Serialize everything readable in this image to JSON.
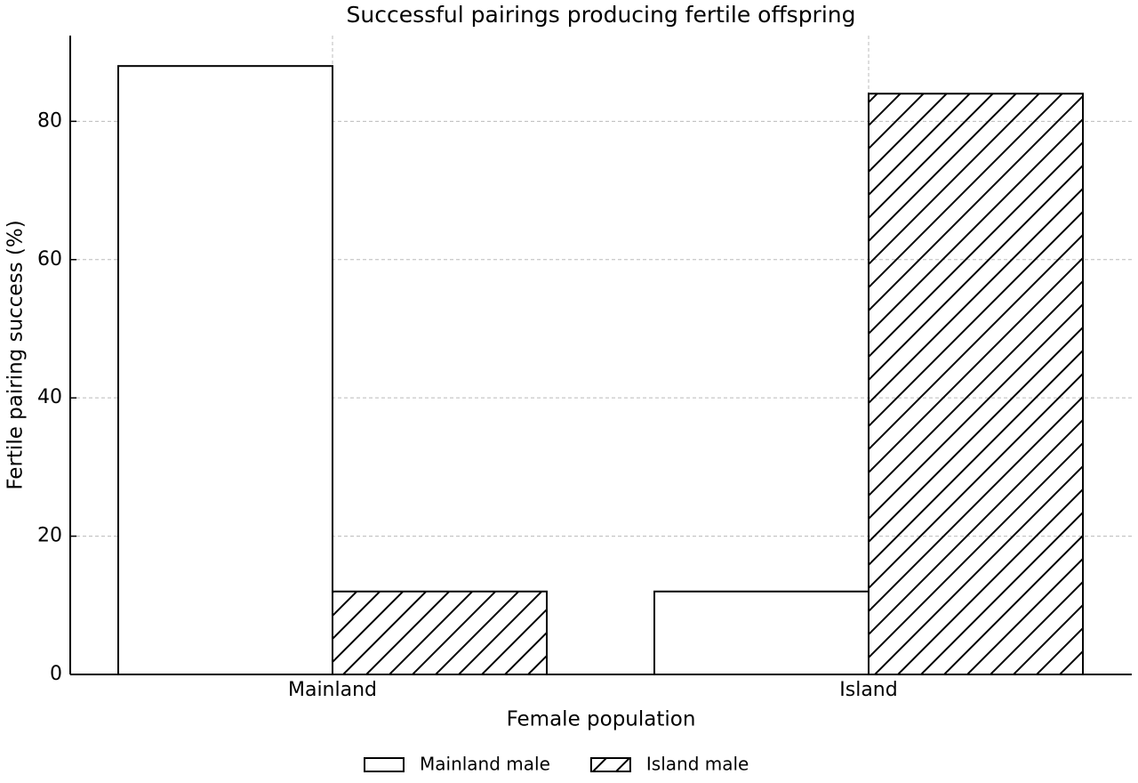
{
  "chart_data": {
    "type": "bar",
    "title": "Successful pairings producing fertile offspring",
    "x_label": "Female population",
    "y_label": "Fertile pairing success (%)",
    "categories": [
      "Mainland",
      "Island"
    ],
    "series": [
      {
        "name": "Mainland male",
        "color": "#ffffff",
        "edgecolor": "#000000",
        "values": [
          88,
          12
        ]
      },
      {
        "name": "Island male",
        "color": "#ffffff",
        "edgecolor": "#000000",
        "hatch": "/",
        "values": [
          12,
          84
        ]
      }
    ],
    "ylim": [
      0,
      92.4
    ],
    "yticks": [
      0,
      20,
      40,
      60,
      80
    ],
    "grid": true,
    "legend": "bottom"
  }
}
